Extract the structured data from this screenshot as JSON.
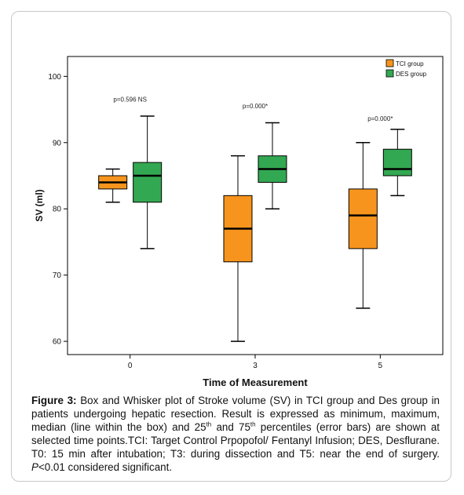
{
  "chart_data": {
    "type": "box",
    "title": "",
    "xlabel": "Time of Measurement",
    "ylabel": "SV (ml)",
    "ylim": [
      58,
      103
    ],
    "yticks": [
      60,
      70,
      80,
      90,
      100
    ],
    "categories": [
      "0",
      "3",
      "5"
    ],
    "legend_position": "top-right",
    "series": [
      {
        "name": "TCI group",
        "color": "#f7941d",
        "boxes": [
          {
            "min": 81,
            "q1": 83,
            "median": 84,
            "q3": 85,
            "max": 86
          },
          {
            "min": 60,
            "q1": 72,
            "median": 77,
            "q3": 82,
            "max": 88
          },
          {
            "min": 65,
            "q1": 74,
            "median": 79,
            "q3": 83,
            "max": 90
          }
        ]
      },
      {
        "name": "DES group",
        "color": "#33a852",
        "boxes": [
          {
            "min": 74,
            "q1": 81,
            "median": 85,
            "q3": 87,
            "max": 94
          },
          {
            "min": 80,
            "q1": 84,
            "median": 86,
            "q3": 88,
            "max": 93
          },
          {
            "min": 82,
            "q1": 85,
            "median": 86,
            "q3": 89,
            "max": 92
          }
        ]
      }
    ],
    "annotations": [
      {
        "text": "p=0.596 NS",
        "category": "0",
        "y": 96.2
      },
      {
        "text": "p=0.000*",
        "category": "3",
        "y": 95.2
      },
      {
        "text": "p=0.000*",
        "category": "5",
        "y": 93.3
      }
    ]
  },
  "caption": {
    "label": "Figure 3:",
    "part1": " Box and Whisker plot of Stroke volume (SV) in TCI group and Des group in patients undergoing hepatic resection. Result is expressed as minimum, maximum, median (line within the box) and 25",
    "sup1": "th",
    "part2": " and 75",
    "sup2": "th",
    "part3": " percentiles (error bars) are shown at selected time points.TCI: Target Control Prpopofol/ Fentanyl Infusion; DES, Desflurane. T0: 15 min after intubation; T3: during dissection and T5: near the end of surgery. ",
    "p_italic": "P",
    "part4": "<0.01 considered significant."
  }
}
